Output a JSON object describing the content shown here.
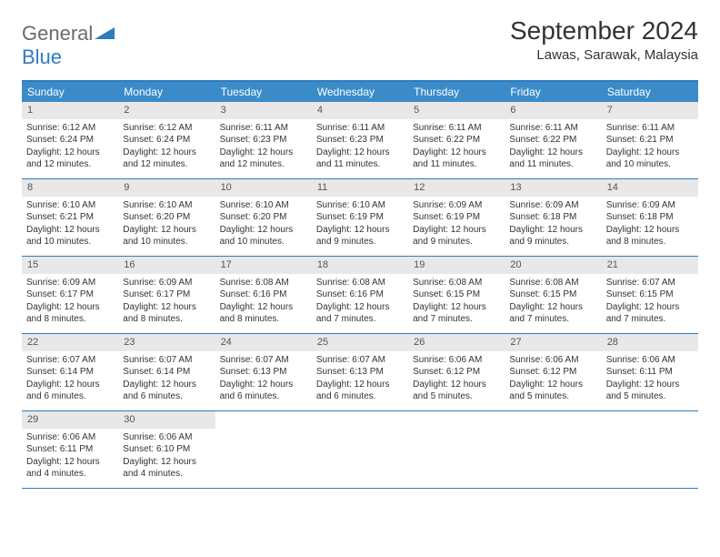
{
  "brand": {
    "main": "General",
    "accent": "Blue"
  },
  "title": "September 2024",
  "location": "Lawas, Sarawak, Malaysia",
  "colors": {
    "header_bar": "#3b8bc9",
    "border": "#2f7bbf",
    "daynum_bg": "#e8e8e8",
    "text": "#333333"
  },
  "daysOfWeek": [
    "Sunday",
    "Monday",
    "Tuesday",
    "Wednesday",
    "Thursday",
    "Friday",
    "Saturday"
  ],
  "weeks": [
    [
      {
        "n": "1",
        "sr": "Sunrise: 6:12 AM",
        "ss": "Sunset: 6:24 PM",
        "dl": "Daylight: 12 hours and 12 minutes."
      },
      {
        "n": "2",
        "sr": "Sunrise: 6:12 AM",
        "ss": "Sunset: 6:24 PM",
        "dl": "Daylight: 12 hours and 12 minutes."
      },
      {
        "n": "3",
        "sr": "Sunrise: 6:11 AM",
        "ss": "Sunset: 6:23 PM",
        "dl": "Daylight: 12 hours and 12 minutes."
      },
      {
        "n": "4",
        "sr": "Sunrise: 6:11 AM",
        "ss": "Sunset: 6:23 PM",
        "dl": "Daylight: 12 hours and 11 minutes."
      },
      {
        "n": "5",
        "sr": "Sunrise: 6:11 AM",
        "ss": "Sunset: 6:22 PM",
        "dl": "Daylight: 12 hours and 11 minutes."
      },
      {
        "n": "6",
        "sr": "Sunrise: 6:11 AM",
        "ss": "Sunset: 6:22 PM",
        "dl": "Daylight: 12 hours and 11 minutes."
      },
      {
        "n": "7",
        "sr": "Sunrise: 6:11 AM",
        "ss": "Sunset: 6:21 PM",
        "dl": "Daylight: 12 hours and 10 minutes."
      }
    ],
    [
      {
        "n": "8",
        "sr": "Sunrise: 6:10 AM",
        "ss": "Sunset: 6:21 PM",
        "dl": "Daylight: 12 hours and 10 minutes."
      },
      {
        "n": "9",
        "sr": "Sunrise: 6:10 AM",
        "ss": "Sunset: 6:20 PM",
        "dl": "Daylight: 12 hours and 10 minutes."
      },
      {
        "n": "10",
        "sr": "Sunrise: 6:10 AM",
        "ss": "Sunset: 6:20 PM",
        "dl": "Daylight: 12 hours and 10 minutes."
      },
      {
        "n": "11",
        "sr": "Sunrise: 6:10 AM",
        "ss": "Sunset: 6:19 PM",
        "dl": "Daylight: 12 hours and 9 minutes."
      },
      {
        "n": "12",
        "sr": "Sunrise: 6:09 AM",
        "ss": "Sunset: 6:19 PM",
        "dl": "Daylight: 12 hours and 9 minutes."
      },
      {
        "n": "13",
        "sr": "Sunrise: 6:09 AM",
        "ss": "Sunset: 6:18 PM",
        "dl": "Daylight: 12 hours and 9 minutes."
      },
      {
        "n": "14",
        "sr": "Sunrise: 6:09 AM",
        "ss": "Sunset: 6:18 PM",
        "dl": "Daylight: 12 hours and 8 minutes."
      }
    ],
    [
      {
        "n": "15",
        "sr": "Sunrise: 6:09 AM",
        "ss": "Sunset: 6:17 PM",
        "dl": "Daylight: 12 hours and 8 minutes."
      },
      {
        "n": "16",
        "sr": "Sunrise: 6:09 AM",
        "ss": "Sunset: 6:17 PM",
        "dl": "Daylight: 12 hours and 8 minutes."
      },
      {
        "n": "17",
        "sr": "Sunrise: 6:08 AM",
        "ss": "Sunset: 6:16 PM",
        "dl": "Daylight: 12 hours and 8 minutes."
      },
      {
        "n": "18",
        "sr": "Sunrise: 6:08 AM",
        "ss": "Sunset: 6:16 PM",
        "dl": "Daylight: 12 hours and 7 minutes."
      },
      {
        "n": "19",
        "sr": "Sunrise: 6:08 AM",
        "ss": "Sunset: 6:15 PM",
        "dl": "Daylight: 12 hours and 7 minutes."
      },
      {
        "n": "20",
        "sr": "Sunrise: 6:08 AM",
        "ss": "Sunset: 6:15 PM",
        "dl": "Daylight: 12 hours and 7 minutes."
      },
      {
        "n": "21",
        "sr": "Sunrise: 6:07 AM",
        "ss": "Sunset: 6:15 PM",
        "dl": "Daylight: 12 hours and 7 minutes."
      }
    ],
    [
      {
        "n": "22",
        "sr": "Sunrise: 6:07 AM",
        "ss": "Sunset: 6:14 PM",
        "dl": "Daylight: 12 hours and 6 minutes."
      },
      {
        "n": "23",
        "sr": "Sunrise: 6:07 AM",
        "ss": "Sunset: 6:14 PM",
        "dl": "Daylight: 12 hours and 6 minutes."
      },
      {
        "n": "24",
        "sr": "Sunrise: 6:07 AM",
        "ss": "Sunset: 6:13 PM",
        "dl": "Daylight: 12 hours and 6 minutes."
      },
      {
        "n": "25",
        "sr": "Sunrise: 6:07 AM",
        "ss": "Sunset: 6:13 PM",
        "dl": "Daylight: 12 hours and 6 minutes."
      },
      {
        "n": "26",
        "sr": "Sunrise: 6:06 AM",
        "ss": "Sunset: 6:12 PM",
        "dl": "Daylight: 12 hours and 5 minutes."
      },
      {
        "n": "27",
        "sr": "Sunrise: 6:06 AM",
        "ss": "Sunset: 6:12 PM",
        "dl": "Daylight: 12 hours and 5 minutes."
      },
      {
        "n": "28",
        "sr": "Sunrise: 6:06 AM",
        "ss": "Sunset: 6:11 PM",
        "dl": "Daylight: 12 hours and 5 minutes."
      }
    ],
    [
      {
        "n": "29",
        "sr": "Sunrise: 6:06 AM",
        "ss": "Sunset: 6:11 PM",
        "dl": "Daylight: 12 hours and 4 minutes."
      },
      {
        "n": "30",
        "sr": "Sunrise: 6:06 AM",
        "ss": "Sunset: 6:10 PM",
        "dl": "Daylight: 12 hours and 4 minutes."
      },
      null,
      null,
      null,
      null,
      null
    ]
  ]
}
